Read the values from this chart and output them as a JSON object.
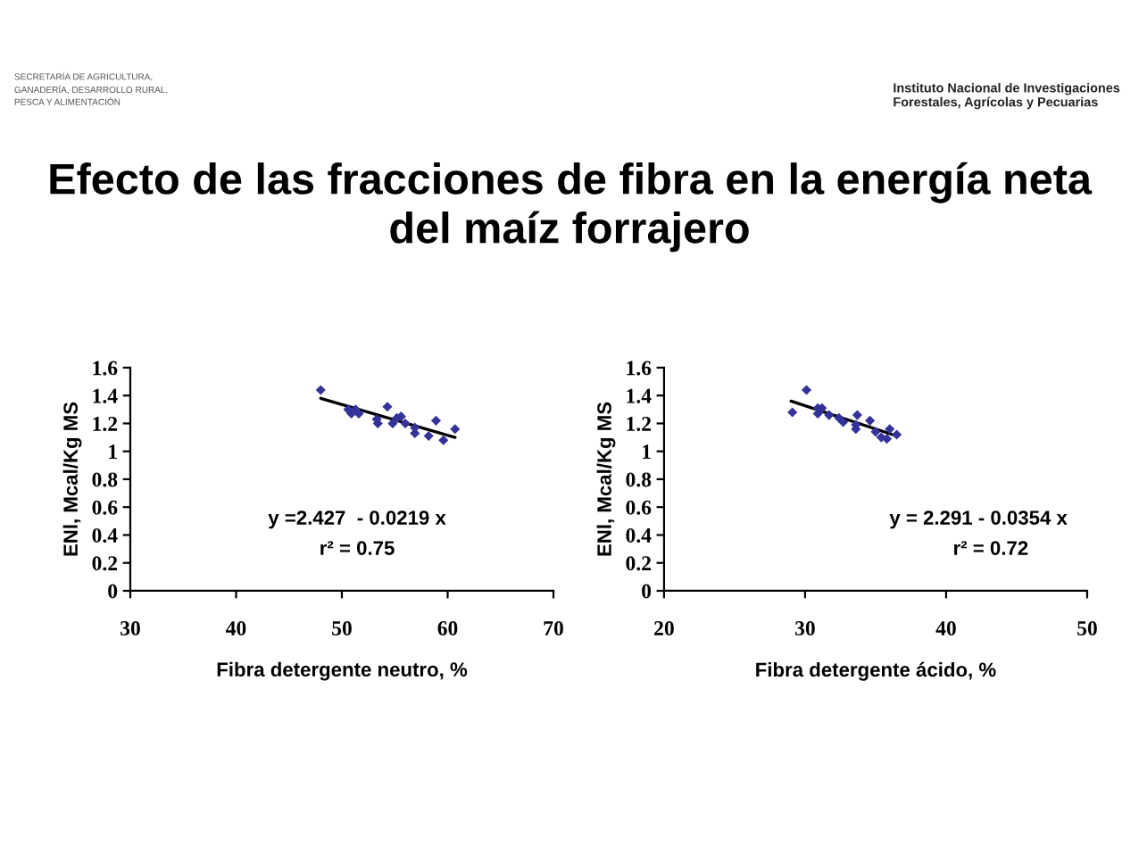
{
  "chart_data": [
    {
      "type": "scatter",
      "title": "Efecto de las fracciones de fibra en la energía neta\ndel maíz forrajero",
      "xlabel": "Fibra detergente neutro, %",
      "ylabel": "ENl, Mcal/Kg MS",
      "annotations": [
        "SECRETARÍA DE AGRICULTURA,\nGANADERÍA, DESARROLLO RURAL,\nPESCA Y ALIMENTACIÓN",
        "Instituto Nacional de Investigaciones\nForestales, Agrícolas y Pecuarias",
        "y =2.427  - 0.0219 x",
        "r² = 0.75"
      ],
      "xlim": [
        30,
        70
      ],
      "xticks": [
        30,
        40,
        50,
        60,
        70
      ],
      "ylim": [
        0,
        1.6
      ],
      "yticks": [
        0,
        0.2,
        0.4,
        0.6,
        0.8,
        1,
        1.2,
        1.4,
        1.6
      ],
      "series": [
        {
          "color": "#333399",
          "marker": "diamond",
          "x": [
            48.0,
            50.6,
            50.9,
            51.3,
            51.6,
            53.3,
            53.4,
            54.3,
            54.8,
            55.2,
            55.6,
            56.0,
            56.9,
            56.9,
            58.2,
            58.9,
            59.6,
            60.7
          ],
          "values": [
            1.44,
            1.3,
            1.27,
            1.3,
            1.27,
            1.23,
            1.2,
            1.32,
            1.2,
            1.24,
            1.25,
            1.2,
            1.13,
            1.17,
            1.11,
            1.22,
            1.08,
            1.16
          ]
        },
        {
          "type": "line",
          "color": "#000000",
          "x": [
            48.0,
            60.7
          ],
          "values": [
            1.38,
            1.1
          ]
        }
      ],
      "grid": false,
      "legend": false
    },
    {
      "type": "scatter",
      "xlabel": "Fibra detergente ácido, %",
      "ylabel": "ENl, Mcal/Kg MS",
      "annotations": [
        "y = 2.291 - 0.0354 x",
        "r² = 0.72"
      ],
      "xlim": [
        20,
        50
      ],
      "xticks": [
        20,
        30,
        40,
        50
      ],
      "ylim": [
        0,
        1.6
      ],
      "yticks": [
        0,
        0.2,
        0.4,
        0.6,
        0.8,
        1,
        1.2,
        1.4,
        1.6
      ],
      "series": [
        {
          "color": "#333399",
          "marker": "diamond",
          "x": [
            29.1,
            30.1,
            30.9,
            30.9,
            31.2,
            31.7,
            32.4,
            32.7,
            33.6,
            33.6,
            33.7,
            34.6,
            35.0,
            35.4,
            35.8,
            36.0,
            36.5
          ],
          "values": [
            1.28,
            1.44,
            1.31,
            1.27,
            1.31,
            1.26,
            1.24,
            1.21,
            1.19,
            1.16,
            1.26,
            1.22,
            1.14,
            1.1,
            1.09,
            1.16,
            1.12
          ]
        },
        {
          "type": "line",
          "color": "#000000",
          "x": [
            29.0,
            36.5
          ],
          "values": [
            1.36,
            1.11
          ]
        }
      ],
      "grid": false,
      "legend": false
    }
  ]
}
